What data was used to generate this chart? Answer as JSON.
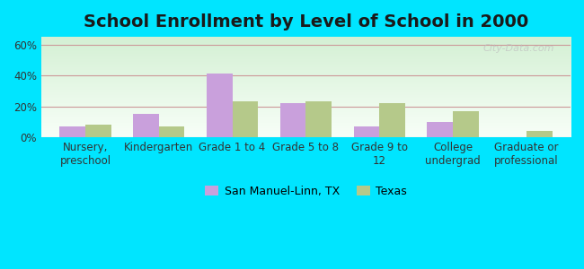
{
  "title": "School Enrollment by Level of School in 2000",
  "categories": [
    "Nursery,\npreschool",
    "Kindergarten",
    "Grade 1 to 4",
    "Grade 5 to 8",
    "Grade 9 to\n12",
    "College\nundergrad",
    "Graduate or\nprofessional"
  ],
  "san_manuel": [
    7,
    15,
    41,
    22,
    7,
    10,
    0
  ],
  "texas": [
    8,
    7,
    23,
    23,
    22,
    17,
    4
  ],
  "san_manuel_color": "#c9a0dc",
  "texas_color": "#b5c98a",
  "background_outer": "#00e5ff",
  "background_inner_top": "#f0fff0",
  "background_inner_bottom": "#e8f8f0",
  "ylim": [
    0,
    65
  ],
  "yticks": [
    0,
    20,
    40,
    60
  ],
  "ytick_labels": [
    "0%",
    "20%",
    "40%",
    "60%"
  ],
  "legend_label_1": "San Manuel-Linn, TX",
  "legend_label_2": "Texas",
  "bar_width": 0.35,
  "watermark": "City-Data.com",
  "title_fontsize": 14,
  "axis_fontsize": 8.5
}
